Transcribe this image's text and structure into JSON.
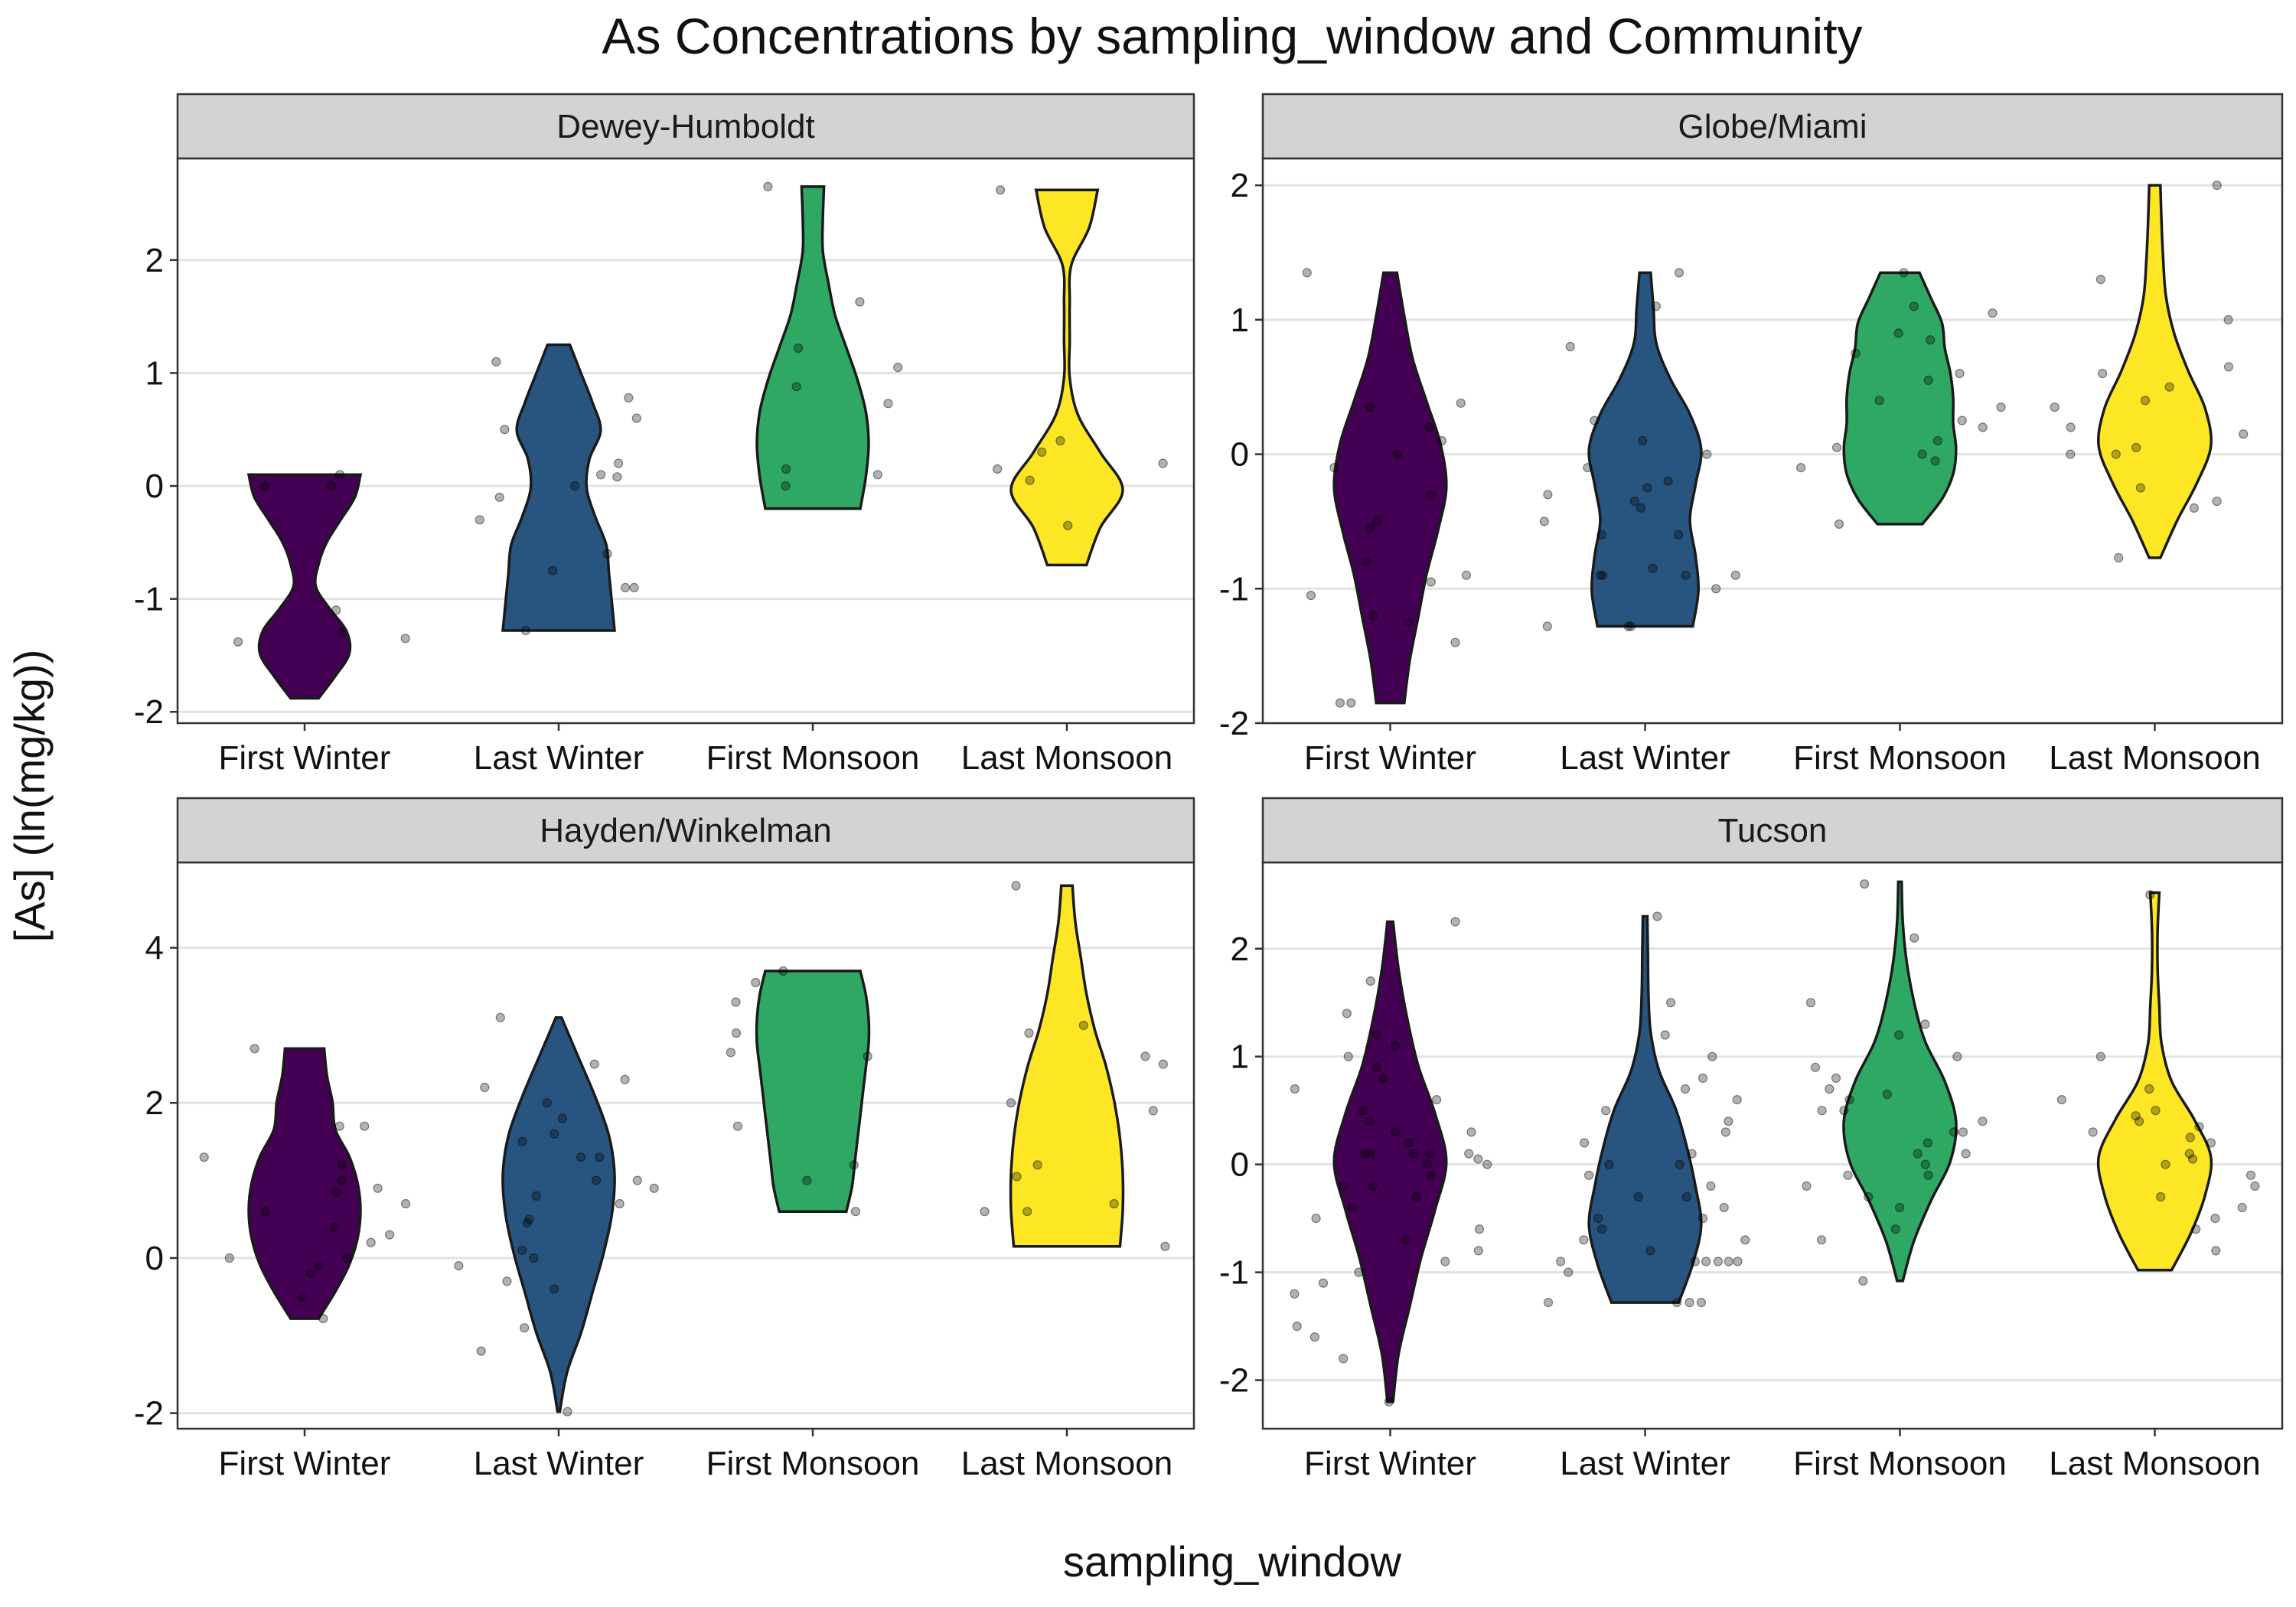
{
  "chart_data": {
    "type": "violin",
    "title": "As Concentrations by sampling_window and Community",
    "xlabel": "sampling_window",
    "ylabel": "[As] (ln(mg/kg))",
    "categories": [
      "First Winter",
      "Last Winter",
      "First Monsoon",
      "Last Monsoon"
    ],
    "colors": [
      "#440154",
      "#27557f",
      "#2fa864",
      "#fde725"
    ],
    "grid": true,
    "legend": "none",
    "facets": [
      {
        "name": "Dewey-Humboldt",
        "ylim": [
          -2.1,
          2.9
        ],
        "yticks": [
          -2,
          -1,
          0,
          1,
          2
        ],
        "series": [
          {
            "category": "First Winter",
            "ymin": -1.88,
            "ymax": 0.1,
            "density": [
              0.25,
              0.55,
              0.8,
              0.75,
              0.45,
              0.2,
              0.25,
              0.4,
              0.65,
              0.9,
              1.0
            ],
            "points": [
              -1.1,
              0.0,
              0.0,
              -1.35,
              -1.3,
              0.1,
              -1.38
            ]
          },
          {
            "category": "Last Winter",
            "ymin": -1.28,
            "ymax": 1.25,
            "density": [
              1.0,
              0.95,
              0.9,
              0.85,
              0.65,
              0.5,
              0.55,
              0.75,
              0.6,
              0.4,
              0.2
            ],
            "points": [
              0.6,
              0.1,
              -0.9,
              -0.6,
              -1.28,
              0.2,
              1.1,
              0.0,
              0.5,
              -0.1,
              0.08,
              -0.9,
              0.78,
              -0.3,
              -0.75
            ]
          },
          {
            "category": "First Monsoon",
            "ymin": -0.2,
            "ymax": 2.65,
            "density": [
              0.85,
              0.95,
              1.0,
              0.95,
              0.8,
              0.6,
              0.4,
              0.28,
              0.18,
              0.18,
              0.2
            ],
            "points": [
              1.63,
              0.0,
              2.65,
              0.15,
              1.05,
              0.73,
              0.88,
              1.22,
              0.1
            ]
          },
          {
            "category": "Last Monsoon",
            "ymin": -0.7,
            "ymax": 2.62,
            "density": [
              0.35,
              0.6,
              1.0,
              0.6,
              0.2,
              0.05,
              0.05,
              0.05,
              0.08,
              0.4,
              0.55
            ],
            "points": [
              2.62,
              0.15,
              0.05,
              0.3,
              -0.35,
              0.2,
              0.4
            ]
          }
        ]
      },
      {
        "name": "Globe/Miami",
        "ylim": [
          -2.0,
          2.2
        ],
        "yticks": [
          -2,
          -1,
          0,
          1,
          2
        ],
        "series": [
          {
            "category": "First Winter",
            "ymin": -1.85,
            "ymax": 1.35,
            "density": [
              0.25,
              0.35,
              0.5,
              0.65,
              0.85,
              1.0,
              0.9,
              0.65,
              0.4,
              0.25,
              0.12
            ],
            "points": [
              0.1,
              -0.1,
              -0.5,
              -0.9,
              -1.4,
              -1.85,
              0.0,
              0.38,
              -0.95,
              -1.05,
              -1.25,
              1.35,
              0.2,
              -0.55,
              -0.3,
              -1.85,
              -0.8,
              0.35,
              -1.2
            ]
          },
          {
            "category": "Last Winter",
            "ymin": -1.28,
            "ymax": 1.35,
            "density": [
              0.85,
              0.95,
              0.9,
              0.8,
              0.9,
              1.0,
              0.8,
              0.45,
              0.2,
              0.15,
              0.1
            ],
            "points": [
              -0.9,
              -1.28,
              -0.3,
              0.25,
              0.8,
              1.35,
              -0.5,
              -0.6,
              -0.9,
              -1.28,
              -0.1,
              0.0,
              -0.4,
              -0.85,
              -1.0,
              -0.2,
              -0.9,
              -1.28,
              1.1,
              -0.35,
              -0.25,
              -0.6,
              -0.9,
              0.1
            ]
          },
          {
            "category": "First Monsoon",
            "ymin": -0.52,
            "ymax": 1.35,
            "density": [
              0.4,
              0.75,
              0.95,
              1.0,
              0.95,
              0.95,
              0.9,
              0.8,
              0.75,
              0.55,
              0.35
            ],
            "points": [
              1.05,
              -0.52,
              1.35,
              0.2,
              0.0,
              -0.1,
              0.55,
              0.85,
              0.4,
              0.25,
              0.1,
              0.75,
              0.6,
              0.35,
              0.9,
              0.05,
              1.1,
              -0.05
            ]
          },
          {
            "category": "Last Monsoon",
            "ymin": -0.77,
            "ymax": 2.0,
            "density": [
              0.1,
              0.4,
              0.75,
              1.0,
              0.9,
              0.6,
              0.35,
              0.2,
              0.15,
              0.12,
              0.1
            ],
            "points": [
              0.65,
              0.5,
              -0.4,
              0.0,
              0.15,
              0.2,
              0.6,
              0.4,
              -0.35,
              0.0,
              1.0,
              1.3,
              2.0,
              0.05,
              -0.25,
              0.35,
              -0.77
            ]
          }
        ]
      },
      {
        "name": "Hayden/Winkelman",
        "ylim": [
          -2.2,
          5.1
        ],
        "yticks": [
          -2,
          0,
          2,
          4
        ],
        "series": [
          {
            "category": "First Winter",
            "ymin": -0.78,
            "ymax": 2.7,
            "density": [
              0.25,
              0.55,
              0.8,
              0.95,
              1.0,
              0.95,
              0.8,
              0.55,
              0.5,
              0.4,
              0.35
            ],
            "points": [
              0.0,
              0.2,
              1.7,
              0.7,
              -0.78,
              0.9,
              0.6,
              1.3,
              2.7,
              -0.2,
              0.4,
              1.2,
              1.7,
              -0.5,
              0.85,
              0.3,
              1.0,
              0.0,
              -0.1
            ]
          },
          {
            "category": "Last Winter",
            "ymin": -1.98,
            "ymax": 3.1,
            "density": [
              0.02,
              0.15,
              0.4,
              0.6,
              0.8,
              0.95,
              1.0,
              0.9,
              0.65,
              0.35,
              0.05
            ],
            "points": [
              3.1,
              2.5,
              2.0,
              1.5,
              1.0,
              0.5,
              0.0,
              -0.3,
              -0.9,
              -1.2,
              -1.98,
              0.9,
              1.3,
              1.8,
              2.3,
              0.7,
              0.1,
              -0.4,
              1.6,
              2.2,
              1.0,
              0.45,
              -0.1,
              1.3,
              0.8
            ]
          },
          {
            "category": "First Monsoon",
            "ymin": 0.6,
            "ymax": 3.7,
            "density": [
              0.6,
              0.7,
              0.75,
              0.8,
              0.85,
              0.9,
              0.95,
              1.0,
              1.0,
              0.95,
              0.85
            ],
            "points": [
              2.65,
              1.7,
              3.3,
              2.9,
              2.6,
              0.6,
              1.2,
              3.7,
              3.55,
              1.0
            ]
          },
          {
            "category": "Last Monsoon",
            "ymin": 0.15,
            "ymax": 4.8,
            "density": [
              0.95,
              1.0,
              1.0,
              0.95,
              0.85,
              0.7,
              0.5,
              0.35,
              0.25,
              0.15,
              0.1
            ],
            "points": [
              1.9,
              2.9,
              0.6,
              2.6,
              1.2,
              0.15,
              2.0,
              4.8,
              3.0,
              2.5,
              1.05,
              0.7,
              0.6
            ]
          }
        ]
      },
      {
        "name": "Tucson",
        "ylim": [
          -2.45,
          2.8
        ],
        "yticks": [
          -2,
          -1,
          0,
          1,
          2
        ],
        "series": [
          {
            "category": "First Winter",
            "ymin": -2.2,
            "ymax": 2.25,
            "density": [
              0.05,
              0.15,
              0.35,
              0.55,
              0.8,
              1.0,
              0.8,
              0.5,
              0.3,
              0.15,
              0.05
            ],
            "points": [
              2.25,
              1.4,
              1.1,
              0.6,
              0.3,
              0.1,
              0.0,
              -0.2,
              -0.5,
              -0.9,
              -1.2,
              -1.6,
              -2.2,
              0.8,
              0.5,
              -0.1,
              -0.3,
              -0.7,
              -1.0,
              1.2,
              0.9,
              0.2,
              -0.4,
              -0.8,
              0.05,
              0.1,
              0.1,
              0.1,
              -1.8,
              -1.5,
              1.7,
              0.4,
              -0.6,
              0.0,
              0.7,
              -0.2,
              0.1,
              -1.1,
              0.3,
              1.0
            ]
          },
          {
            "category": "Last Winter",
            "ymin": -1.28,
            "ymax": 2.3,
            "density": [
              0.6,
              0.85,
              1.0,
              0.9,
              0.75,
              0.55,
              0.25,
              0.1,
              0.06,
              0.05,
              0.04
            ],
            "points": [
              -0.9,
              -1.28,
              -0.7,
              -0.5,
              -0.3,
              0.0,
              0.3,
              0.5,
              0.8,
              1.2,
              1.5,
              2.3,
              -0.9,
              -0.9,
              -0.9,
              -1.28,
              -1.28,
              -0.6,
              -0.2,
              0.1,
              0.6,
              -0.8,
              -0.4,
              0.2,
              -1.0,
              -0.1,
              0.4,
              -0.9,
              -0.5,
              0.0,
              -0.9,
              -1.28,
              0.7,
              -0.3,
              -0.7,
              1.0
            ]
          },
          {
            "category": "First Monsoon",
            "ymin": -1.08,
            "ymax": 2.62,
            "density": [
              0.05,
              0.25,
              0.55,
              0.9,
              1.0,
              0.8,
              0.45,
              0.25,
              0.12,
              0.05,
              0.03
            ],
            "points": [
              0.1,
              0.3,
              0.5,
              0.7,
              0.9,
              -0.1,
              -0.3,
              -0.6,
              1.2,
              1.5,
              2.6,
              0.0,
              0.4,
              0.8,
              -0.2,
              0.6,
              1.0,
              -0.4,
              0.2,
              2.1,
              -0.7,
              0.3,
              0.65,
              -0.1,
              1.3,
              -1.08,
              0.5,
              0.1
            ]
          },
          {
            "category": "Last Monsoon",
            "ymin": -0.98,
            "ymax": 2.52,
            "density": [
              0.3,
              0.65,
              0.9,
              1.0,
              0.7,
              0.3,
              0.12,
              0.08,
              0.05,
              0.05,
              0.08
            ],
            "points": [
              0.0,
              0.2,
              0.4,
              0.6,
              -0.2,
              -0.5,
              -0.8,
              1.0,
              0.3,
              0.1,
              -0.4,
              0.45,
              0.7,
              -0.1,
              0.25,
              2.5,
              0.05,
              -0.3,
              0.5,
              -0.6,
              0.35
            ]
          }
        ]
      }
    ]
  }
}
